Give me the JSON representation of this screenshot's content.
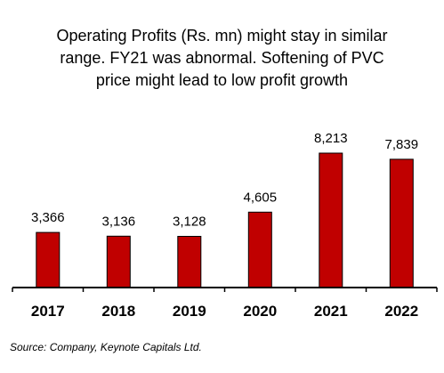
{
  "chart_data": {
    "type": "bar",
    "title_lines": [
      "Operating Profits (Rs. mn) might stay in similar",
      "range. FY21 was abnormal. Softening of PVC",
      "price might lead to low profit growth"
    ],
    "categories": [
      "2017",
      "2018",
      "2019",
      "2020",
      "2021",
      "2022"
    ],
    "values": [
      3366,
      3136,
      3128,
      4605,
      8213,
      7839
    ],
    "value_labels": [
      "3,366",
      "3,136",
      "3,128",
      "4,605",
      "8,213",
      "7,839"
    ],
    "xlabel": "",
    "ylabel": "",
    "ylim": [
      0,
      8213
    ],
    "bar_color": "#c00000",
    "grid": false,
    "legend": "none"
  },
  "source": "Source: Company, Keynote Capitals Ltd."
}
